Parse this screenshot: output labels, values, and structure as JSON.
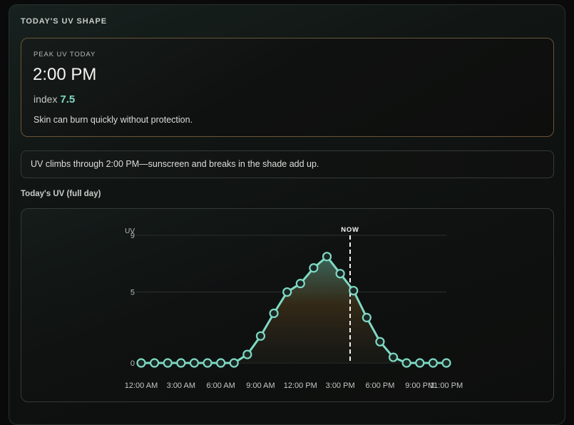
{
  "section": {
    "title": "TODAY'S UV SHAPE"
  },
  "peak": {
    "label": "PEAK UV TODAY",
    "time": "2:00 PM",
    "index_label": "index",
    "index_value": "7.5",
    "note": "Skin can burn quickly without protection."
  },
  "message": "UV climbs through 2:00 PM—sunscreen and breaks in the shade add up.",
  "chart": {
    "title": "Today's UV (full day)",
    "y_axis_label": "UV",
    "now_label": "NOW"
  },
  "colors": {
    "accent": "#7fd9c4",
    "peak_border": "#6b5436",
    "fill_top": "#3f6e62",
    "fill_mid": "#3a2d18"
  },
  "chart_data": {
    "type": "area",
    "title": "Today's UV (full day)",
    "xlabel": "",
    "ylabel": "UV",
    "ylim": [
      0,
      9
    ],
    "yticks": [
      0,
      5,
      9
    ],
    "grid": true,
    "x_tick_labels": [
      "12:00 AM",
      "3:00 AM",
      "6:00 AM",
      "9:00 AM",
      "12:00 PM",
      "3:00 PM",
      "6:00 PM",
      "9:00 PM",
      "11:00 PM"
    ],
    "x": [
      "12:00 AM",
      "1:00 AM",
      "2:00 AM",
      "3:00 AM",
      "4:00 AM",
      "5:00 AM",
      "6:00 AM",
      "7:00 AM",
      "8:00 AM",
      "9:00 AM",
      "10:00 AM",
      "11:00 AM",
      "12:00 PM",
      "1:00 PM",
      "2:00 PM",
      "3:00 PM",
      "4:00 PM",
      "5:00 PM",
      "6:00 PM",
      "7:00 PM",
      "8:00 PM",
      "9:00 PM",
      "10:00 PM",
      "11:00 PM"
    ],
    "series": [
      {
        "name": "UV index",
        "values": [
          0,
          0,
          0,
          0,
          0,
          0,
          0,
          0,
          0.6,
          1.9,
          3.5,
          5.0,
          5.6,
          6.7,
          7.5,
          6.3,
          5.1,
          3.2,
          1.5,
          0.4,
          0,
          0,
          0,
          0
        ]
      }
    ],
    "now_marker": {
      "label": "NOW",
      "x_position": "~3:45 PM"
    },
    "legend": "none"
  }
}
